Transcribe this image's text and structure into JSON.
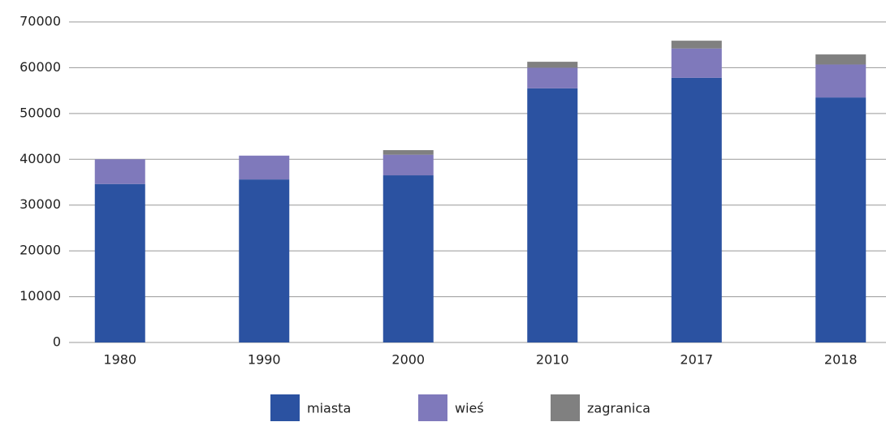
{
  "chart_data": {
    "type": "stacked_bar",
    "categories": [
      "1980",
      "1990",
      "2000",
      "2010",
      "2017",
      "2018"
    ],
    "series": [
      {
        "name": "miasta",
        "color": "#2b52a1",
        "values": [
          34600,
          35600,
          36500,
          55500,
          57800,
          53500
        ]
      },
      {
        "name": "wieś",
        "color": "#7f79bb",
        "values": [
          5400,
          5200,
          4500,
          4500,
          6400,
          7200
        ]
      },
      {
        "name": "zagranica",
        "color": "#808080",
        "values": [
          0,
          0,
          1000,
          1300,
          1700,
          2200
        ]
      }
    ],
    "ylim": [
      0,
      70000
    ],
    "yticks": [
      0,
      10000,
      20000,
      30000,
      40000,
      50000,
      60000,
      70000
    ],
    "grid": true,
    "legend": "bottom"
  }
}
